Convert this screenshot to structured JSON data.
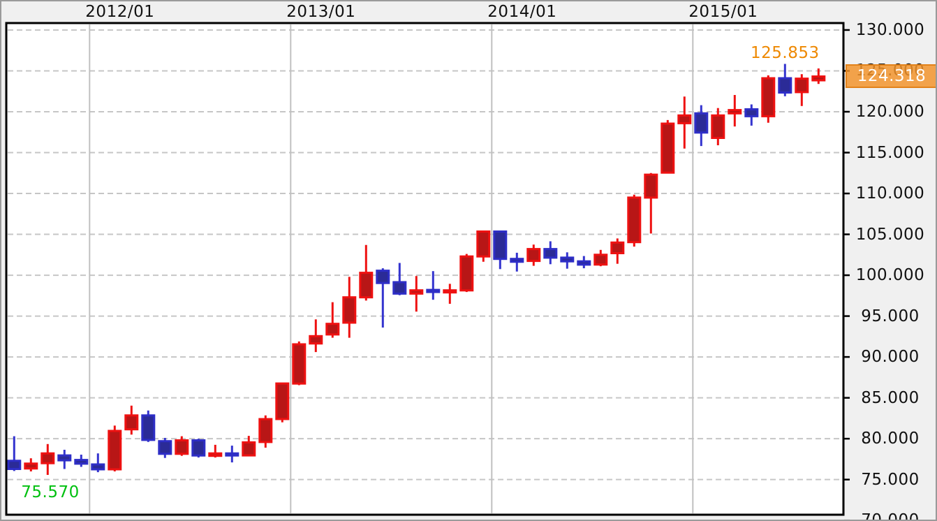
{
  "chart_data": {
    "type": "candlestick",
    "instrument_note": "monthly OHLC candles, red = up month, blue = down month",
    "x_axis": {
      "labels": [
        "2012/01",
        "2013/01",
        "2014/01",
        "2015/01"
      ],
      "label_candle_indices": [
        5,
        17,
        29,
        41
      ]
    },
    "y_axis": {
      "max": 130.85,
      "min": 70.7,
      "tick_step": 5,
      "ticks": [
        {
          "label": "130.000",
          "value": 130
        },
        {
          "label": "125.000",
          "value": 125
        },
        {
          "label": "120.000",
          "value": 120
        },
        {
          "label": "115.000",
          "value": 115
        },
        {
          "label": "110.000",
          "value": 110
        },
        {
          "label": "105.000",
          "value": 105
        },
        {
          "label": "100.000",
          "value": 100
        },
        {
          "label": "95.000",
          "value": 95
        },
        {
          "label": "90.000",
          "value": 90
        },
        {
          "label": "85.000",
          "value": 85
        },
        {
          "label": "80.000",
          "value": 80
        },
        {
          "label": "75.000",
          "value": 75
        },
        {
          "label": "70.000",
          "value": 70
        }
      ]
    },
    "candles": [
      {
        "m": "2011-08",
        "o": 77.3,
        "h": 80.3,
        "l": 76.05,
        "c": 76.3
      },
      {
        "m": "2011-09",
        "o": 76.35,
        "h": 77.6,
        "l": 76.0,
        "c": 76.95
      },
      {
        "m": "2011-10",
        "o": 77.0,
        "h": 79.35,
        "l": 75.57,
        "c": 78.2
      },
      {
        "m": "2011-11",
        "o": 77.95,
        "h": 78.65,
        "l": 76.3,
        "c": 77.35
      },
      {
        "m": "2011-12",
        "o": 77.4,
        "h": 78.05,
        "l": 76.55,
        "c": 76.95
      },
      {
        "m": "2012-01",
        "o": 76.85,
        "h": 78.2,
        "l": 75.9,
        "c": 76.25
      },
      {
        "m": "2012-02",
        "o": 76.25,
        "h": 81.6,
        "l": 76.0,
        "c": 80.95
      },
      {
        "m": "2012-03",
        "o": 81.15,
        "h": 84.05,
        "l": 80.5,
        "c": 82.85
      },
      {
        "m": "2012-04",
        "o": 82.85,
        "h": 83.45,
        "l": 79.6,
        "c": 79.85
      },
      {
        "m": "2012-05",
        "o": 79.7,
        "h": 80.1,
        "l": 77.65,
        "c": 78.15
      },
      {
        "m": "2012-06",
        "o": 78.15,
        "h": 80.3,
        "l": 77.9,
        "c": 79.8
      },
      {
        "m": "2012-07",
        "o": 79.8,
        "h": 80.0,
        "l": 77.7,
        "c": 77.95
      },
      {
        "m": "2012-08",
        "o": 77.9,
        "h": 79.25,
        "l": 77.7,
        "c": 78.2
      },
      {
        "m": "2012-09",
        "o": 78.2,
        "h": 79.15,
        "l": 77.1,
        "c": 77.95
      },
      {
        "m": "2012-10",
        "o": 77.95,
        "h": 80.35,
        "l": 77.85,
        "c": 79.55
      },
      {
        "m": "2012-11",
        "o": 79.6,
        "h": 82.85,
        "l": 78.9,
        "c": 82.4
      },
      {
        "m": "2012-12",
        "o": 82.4,
        "h": 86.8,
        "l": 82.0,
        "c": 86.75
      },
      {
        "m": "2013-01",
        "o": 86.75,
        "h": 91.9,
        "l": 86.55,
        "c": 91.55
      },
      {
        "m": "2013-02",
        "o": 91.65,
        "h": 94.6,
        "l": 90.6,
        "c": 92.55
      },
      {
        "m": "2013-03",
        "o": 92.75,
        "h": 96.7,
        "l": 92.35,
        "c": 94.05
      },
      {
        "m": "2013-04",
        "o": 94.2,
        "h": 99.8,
        "l": 92.35,
        "c": 97.3
      },
      {
        "m": "2013-05",
        "o": 97.3,
        "h": 103.7,
        "l": 96.9,
        "c": 100.3
      },
      {
        "m": "2013-06",
        "o": 100.55,
        "h": 100.85,
        "l": 93.6,
        "c": 99.05
      },
      {
        "m": "2013-07",
        "o": 99.15,
        "h": 101.5,
        "l": 97.55,
        "c": 97.75
      },
      {
        "m": "2013-08",
        "o": 97.75,
        "h": 99.9,
        "l": 95.55,
        "c": 98.15
      },
      {
        "m": "2013-09",
        "o": 98.2,
        "h": 100.5,
        "l": 97.0,
        "c": 97.95
      },
      {
        "m": "2013-10",
        "o": 97.95,
        "h": 98.95,
        "l": 96.5,
        "c": 98.15
      },
      {
        "m": "2013-11",
        "o": 98.15,
        "h": 102.6,
        "l": 97.95,
        "c": 102.3
      },
      {
        "m": "2013-12",
        "o": 102.3,
        "h": 105.45,
        "l": 101.65,
        "c": 105.35
      },
      {
        "m": "2014-01",
        "o": 105.35,
        "h": 105.45,
        "l": 100.75,
        "c": 102.0
      },
      {
        "m": "2014-02",
        "o": 102.0,
        "h": 102.75,
        "l": 100.45,
        "c": 101.65
      },
      {
        "m": "2014-03",
        "o": 101.75,
        "h": 103.75,
        "l": 101.15,
        "c": 103.2
      },
      {
        "m": "2014-04",
        "o": 103.2,
        "h": 104.15,
        "l": 101.35,
        "c": 102.15
      },
      {
        "m": "2014-05",
        "o": 102.15,
        "h": 102.8,
        "l": 100.8,
        "c": 101.7
      },
      {
        "m": "2014-06",
        "o": 101.7,
        "h": 102.35,
        "l": 100.85,
        "c": 101.3
      },
      {
        "m": "2014-07",
        "o": 101.3,
        "h": 103.1,
        "l": 101.1,
        "c": 102.5
      },
      {
        "m": "2014-08",
        "o": 102.7,
        "h": 104.5,
        "l": 101.4,
        "c": 104.0
      },
      {
        "m": "2014-09",
        "o": 104.05,
        "h": 109.85,
        "l": 103.5,
        "c": 109.5
      },
      {
        "m": "2014-10",
        "o": 109.5,
        "h": 112.5,
        "l": 105.1,
        "c": 112.3
      },
      {
        "m": "2014-11",
        "o": 112.55,
        "h": 118.98,
        "l": 112.45,
        "c": 118.55
      },
      {
        "m": "2014-12",
        "o": 118.6,
        "h": 121.85,
        "l": 115.5,
        "c": 119.55
      },
      {
        "m": "2015-01",
        "o": 119.8,
        "h": 120.8,
        "l": 115.8,
        "c": 117.45
      },
      {
        "m": "2015-02",
        "o": 116.8,
        "h": 120.45,
        "l": 115.9,
        "c": 119.55
      },
      {
        "m": "2015-03",
        "o": 119.8,
        "h": 122.05,
        "l": 118.2,
        "c": 120.2
      },
      {
        "m": "2015-04",
        "o": 120.3,
        "h": 120.9,
        "l": 118.3,
        "c": 119.45
      },
      {
        "m": "2015-05",
        "o": 119.45,
        "h": 124.45,
        "l": 118.65,
        "c": 124.1
      },
      {
        "m": "2015-06",
        "o": 124.1,
        "h": 125.853,
        "l": 121.9,
        "c": 122.35
      },
      {
        "m": "2015-07",
        "o": 122.4,
        "h": 124.6,
        "l": 120.7,
        "c": 124.05
      },
      {
        "m": "2015-08",
        "o": 123.85,
        "h": 125.3,
        "l": 123.4,
        "c": 124.318
      }
    ],
    "annotations": {
      "high_label": "125.853",
      "high_candle_index": 46,
      "low_label": "75.570",
      "low_candle_index": 2,
      "current_price": "124.318"
    },
    "colors": {
      "up_fill": "#b81616",
      "up_border": "#ee1111",
      "down_fill": "#2b2b97",
      "down_border": "#2e2ec6",
      "down_wick": "#3434cf",
      "grid": "#c6c6c6",
      "plot_border": "#000000",
      "plot_bg": "#ffffff",
      "panel_bg": "#f0f0f0",
      "badge_bg": "#f2922a",
      "badge_border": "#e2821a",
      "badge_text": "#ffffff",
      "high_label_color": "#ee8800",
      "low_label_color": "#00c010",
      "axis_text": "#111111"
    },
    "legend_position": "none",
    "grid": true
  }
}
